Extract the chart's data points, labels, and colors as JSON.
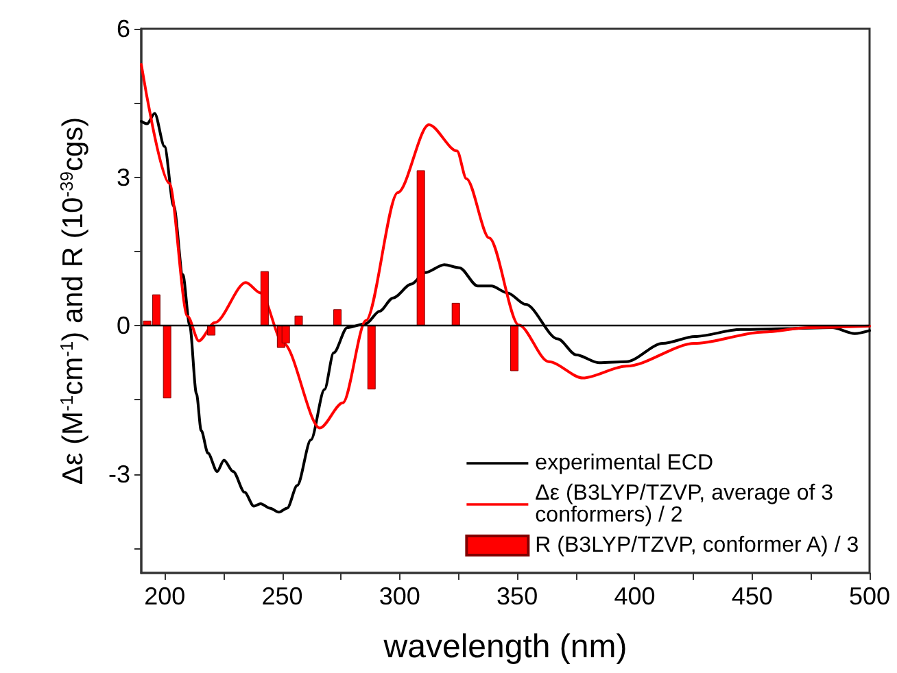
{
  "chart_data": {
    "type": "line",
    "xlabel": "wavelength (nm)",
    "ylabel": "Δε (M$^{-1}$cm$^{-1}$) and R (10$^{-39}$cgs)",
    "xlim": [
      190,
      500
    ],
    "xticks": [
      200,
      {
        "value": 225,
        "label": null
      },
      250,
      {
        "value": 275,
        "label": null
      },
      300,
      {
        "value": 325,
        "label": null
      },
      350,
      {
        "value": 375,
        "label": null
      },
      400,
      {
        "value": 425,
        "label": null
      },
      450,
      {
        "value": 475,
        "label": null
      },
      500
    ],
    "ylim": [
      -5,
      6
    ],
    "yticks": [
      {
        "value": -4.5,
        "label": null
      },
      -3,
      {
        "value": -1.5,
        "label": null
      },
      0,
      {
        "value": 1.5,
        "label": null
      },
      3,
      {
        "value": 4.5,
        "label": null
      },
      6
    ],
    "grid": false,
    "legend": "bottom right",
    "marker": "none",
    "line_style": "solid",
    "ref_lines": [
      {
        "axis": "y",
        "value": 0,
        "color": "#000000"
      }
    ],
    "series": [
      {
        "name": "experimental ECD",
        "color": "#000000",
        "x": [
          190,
          192.5,
          195.7,
          199.9,
          203.8,
          207.7,
          210.6,
          213.5,
          215.5,
          218.4,
          222.3,
          225.2,
          229.1,
          234,
          237.9,
          240.8,
          244.7,
          248.6,
          252.1,
          256.4,
          262.2,
          268,
          271.9,
          277.7,
          285.6,
          291.4,
          297.2,
          305,
          310.8,
          319,
          325.4,
          333.2,
          339,
          345.9,
          353.6,
          367.3,
          375.1,
          384.8,
          396.5,
          412,
          425.7,
          445.1,
          464.5,
          484,
          493.7,
          500
        ],
        "values": [
          4.13,
          4.08,
          4.29,
          3.62,
          2.42,
          1.03,
          0.01,
          -1.38,
          -2.12,
          -2.58,
          -2.95,
          -2.72,
          -2.95,
          -3.37,
          -3.65,
          -3.6,
          -3.69,
          -3.77,
          -3.69,
          -3.23,
          -2.31,
          -1.29,
          -0.55,
          -0.04,
          0.04,
          0.29,
          0.56,
          0.84,
          1.07,
          1.23,
          1.17,
          0.8,
          0.8,
          0.66,
          0.43,
          -0.27,
          -0.59,
          -0.75,
          -0.73,
          -0.36,
          -0.22,
          -0.08,
          -0.06,
          -0.04,
          -0.16,
          -0.1
        ]
      },
      {
        "name": "Δε (B3LYP/TZVP, average of 3 conformers) / 2",
        "color": "#ff0000",
        "x": [
          190,
          201.9,
          209.7,
          214.5,
          221.3,
          234.5,
          240.8,
          250.5,
          266,
          275.8,
          285.6,
          299.2,
          312.4,
          324.4,
          328.4,
          338.1,
          350.7,
          363.4,
          378,
          396.5,
          425.7,
          454.9,
          474.3,
          500
        ],
        "values": [
          5.28,
          2.88,
          0.19,
          -0.31,
          0.06,
          0.87,
          0.66,
          -0.36,
          -2.07,
          -1.56,
          0.1,
          2.69,
          4.06,
          3.53,
          2.97,
          1.77,
          0.01,
          -0.73,
          -1.06,
          -0.82,
          -0.36,
          -0.13,
          -0.04,
          -0.01
        ]
      },
      {
        "name": "R (B3LYP/TZVP, conformer A) / 3",
        "type": "bar",
        "color": "#ff0000",
        "x": [
          192.5,
          196.4,
          201,
          219.8,
          242.5,
          249.5,
          251.5,
          257,
          273.5,
          288,
          309,
          323.9,
          348.8
        ],
        "values": [
          0.1,
          0.63,
          -1.47,
          -0.2,
          1.1,
          -0.45,
          -0.36,
          0.2,
          0.33,
          -1.29,
          3.14,
          0.46,
          -0.92
        ]
      }
    ]
  }
}
